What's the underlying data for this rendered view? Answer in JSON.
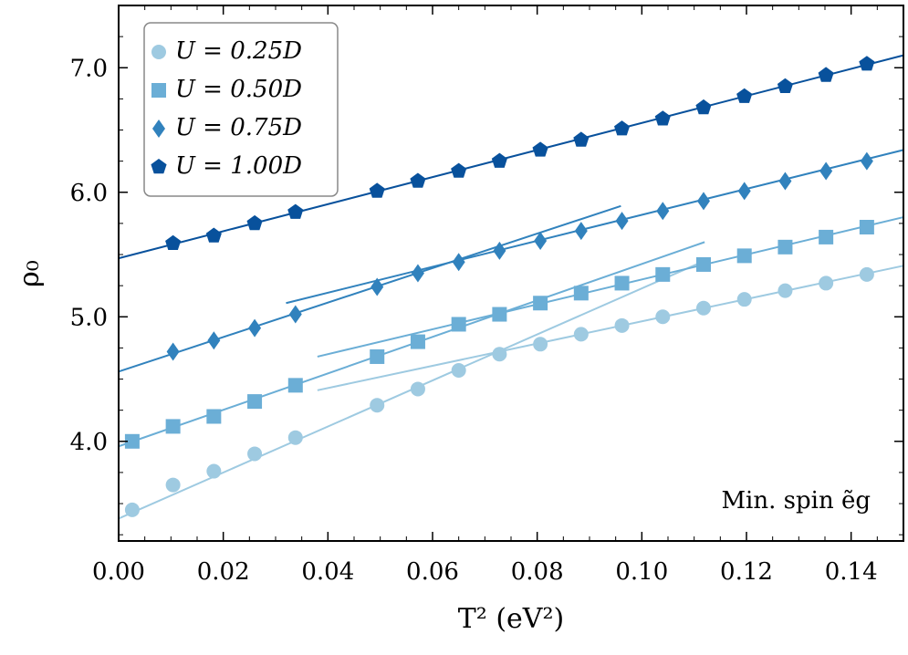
{
  "chart_data": {
    "type": "scatter",
    "xlabel": "T² (eV²)",
    "ylabel": "ρ₀",
    "xlim": [
      0.0,
      0.15
    ],
    "ylim": [
      3.2,
      7.5
    ],
    "x_ticks": [
      0.0,
      0.02,
      0.04,
      0.06,
      0.08,
      0.1,
      0.12,
      0.14
    ],
    "x_tick_labels": [
      "0.00",
      "0.02",
      "0.04",
      "0.06",
      "0.08",
      "0.10",
      "0.12",
      "0.14"
    ],
    "y_ticks": [
      4.0,
      5.0,
      6.0,
      7.0
    ],
    "y_tick_labels": [
      "4.0",
      "5.0",
      "6.0",
      "7.0"
    ],
    "annotation": "Min. spin ẽg",
    "legend_position": "top-left",
    "series": [
      {
        "name": "U = 0.25D",
        "marker": "circle",
        "color": "#9ecae1",
        "x": [
          0.0026,
          0.0104,
          0.0182,
          0.026,
          0.0338,
          0.0494,
          0.0572,
          0.065,
          0.0728,
          0.0806,
          0.0884,
          0.0962,
          0.104,
          0.1118,
          0.1196,
          0.1274,
          0.1352,
          0.143
        ],
        "y": [
          3.45,
          3.65,
          3.76,
          3.9,
          4.03,
          4.29,
          4.42,
          4.57,
          4.7,
          4.78,
          4.86,
          4.93,
          5.0,
          5.07,
          5.14,
          5.21,
          5.27,
          5.34
        ],
        "fits": [
          {
            "x": [
              0.0,
              0.112
            ],
            "y": [
              3.38,
              5.45
            ]
          },
          {
            "x": [
              0.038,
              0.15
            ],
            "y": [
              4.41,
              5.41
            ]
          }
        ]
      },
      {
        "name": "U = 0.50D",
        "marker": "square",
        "color": "#6baed6",
        "x": [
          0.0026,
          0.0104,
          0.0182,
          0.026,
          0.0338,
          0.0494,
          0.0572,
          0.065,
          0.0728,
          0.0806,
          0.0884,
          0.0962,
          0.104,
          0.1118,
          0.1196,
          0.1274,
          0.1352,
          0.143
        ],
        "y": [
          4.0,
          4.12,
          4.2,
          4.32,
          4.45,
          4.68,
          4.8,
          4.94,
          5.02,
          5.11,
          5.19,
          5.27,
          5.34,
          5.42,
          5.49,
          5.56,
          5.64,
          5.72
        ],
        "fits": [
          {
            "x": [
              0.0,
              0.112
            ],
            "y": [
              3.96,
              5.6
            ]
          },
          {
            "x": [
              0.038,
              0.15
            ],
            "y": [
              4.68,
              5.8
            ]
          }
        ]
      },
      {
        "name": "U = 0.75D",
        "marker": "diamond",
        "color": "#3182bd",
        "x": [
          0.0104,
          0.0182,
          0.026,
          0.0338,
          0.0494,
          0.0572,
          0.065,
          0.0728,
          0.0806,
          0.0884,
          0.0962,
          0.104,
          0.1118,
          0.1196,
          0.1274,
          0.1352,
          0.143
        ],
        "y": [
          4.72,
          4.81,
          4.91,
          5.02,
          5.24,
          5.35,
          5.44,
          5.53,
          5.61,
          5.69,
          5.77,
          5.85,
          5.93,
          6.01,
          6.09,
          6.17,
          6.25
        ],
        "fits": [
          {
            "x": [
              0.0,
              0.096
            ],
            "y": [
              4.56,
              5.89
            ]
          },
          {
            "x": [
              0.032,
              0.15
            ],
            "y": [
              5.11,
              6.34
            ]
          }
        ]
      },
      {
        "name": "U = 1.00D",
        "marker": "pentagon",
        "color": "#08519c",
        "x": [
          0.0104,
          0.0182,
          0.026,
          0.0338,
          0.0494,
          0.0572,
          0.065,
          0.0728,
          0.0806,
          0.0884,
          0.0962,
          0.104,
          0.1118,
          0.1196,
          0.1274,
          0.1352,
          0.143
        ],
        "y": [
          5.59,
          5.65,
          5.75,
          5.84,
          6.01,
          6.09,
          6.17,
          6.25,
          6.34,
          6.42,
          6.51,
          6.59,
          6.68,
          6.77,
          6.85,
          6.94,
          7.03
        ],
        "fits": [
          {
            "x": [
              0.0,
              0.15
            ],
            "y": [
              5.47,
              7.1
            ]
          }
        ]
      }
    ]
  }
}
